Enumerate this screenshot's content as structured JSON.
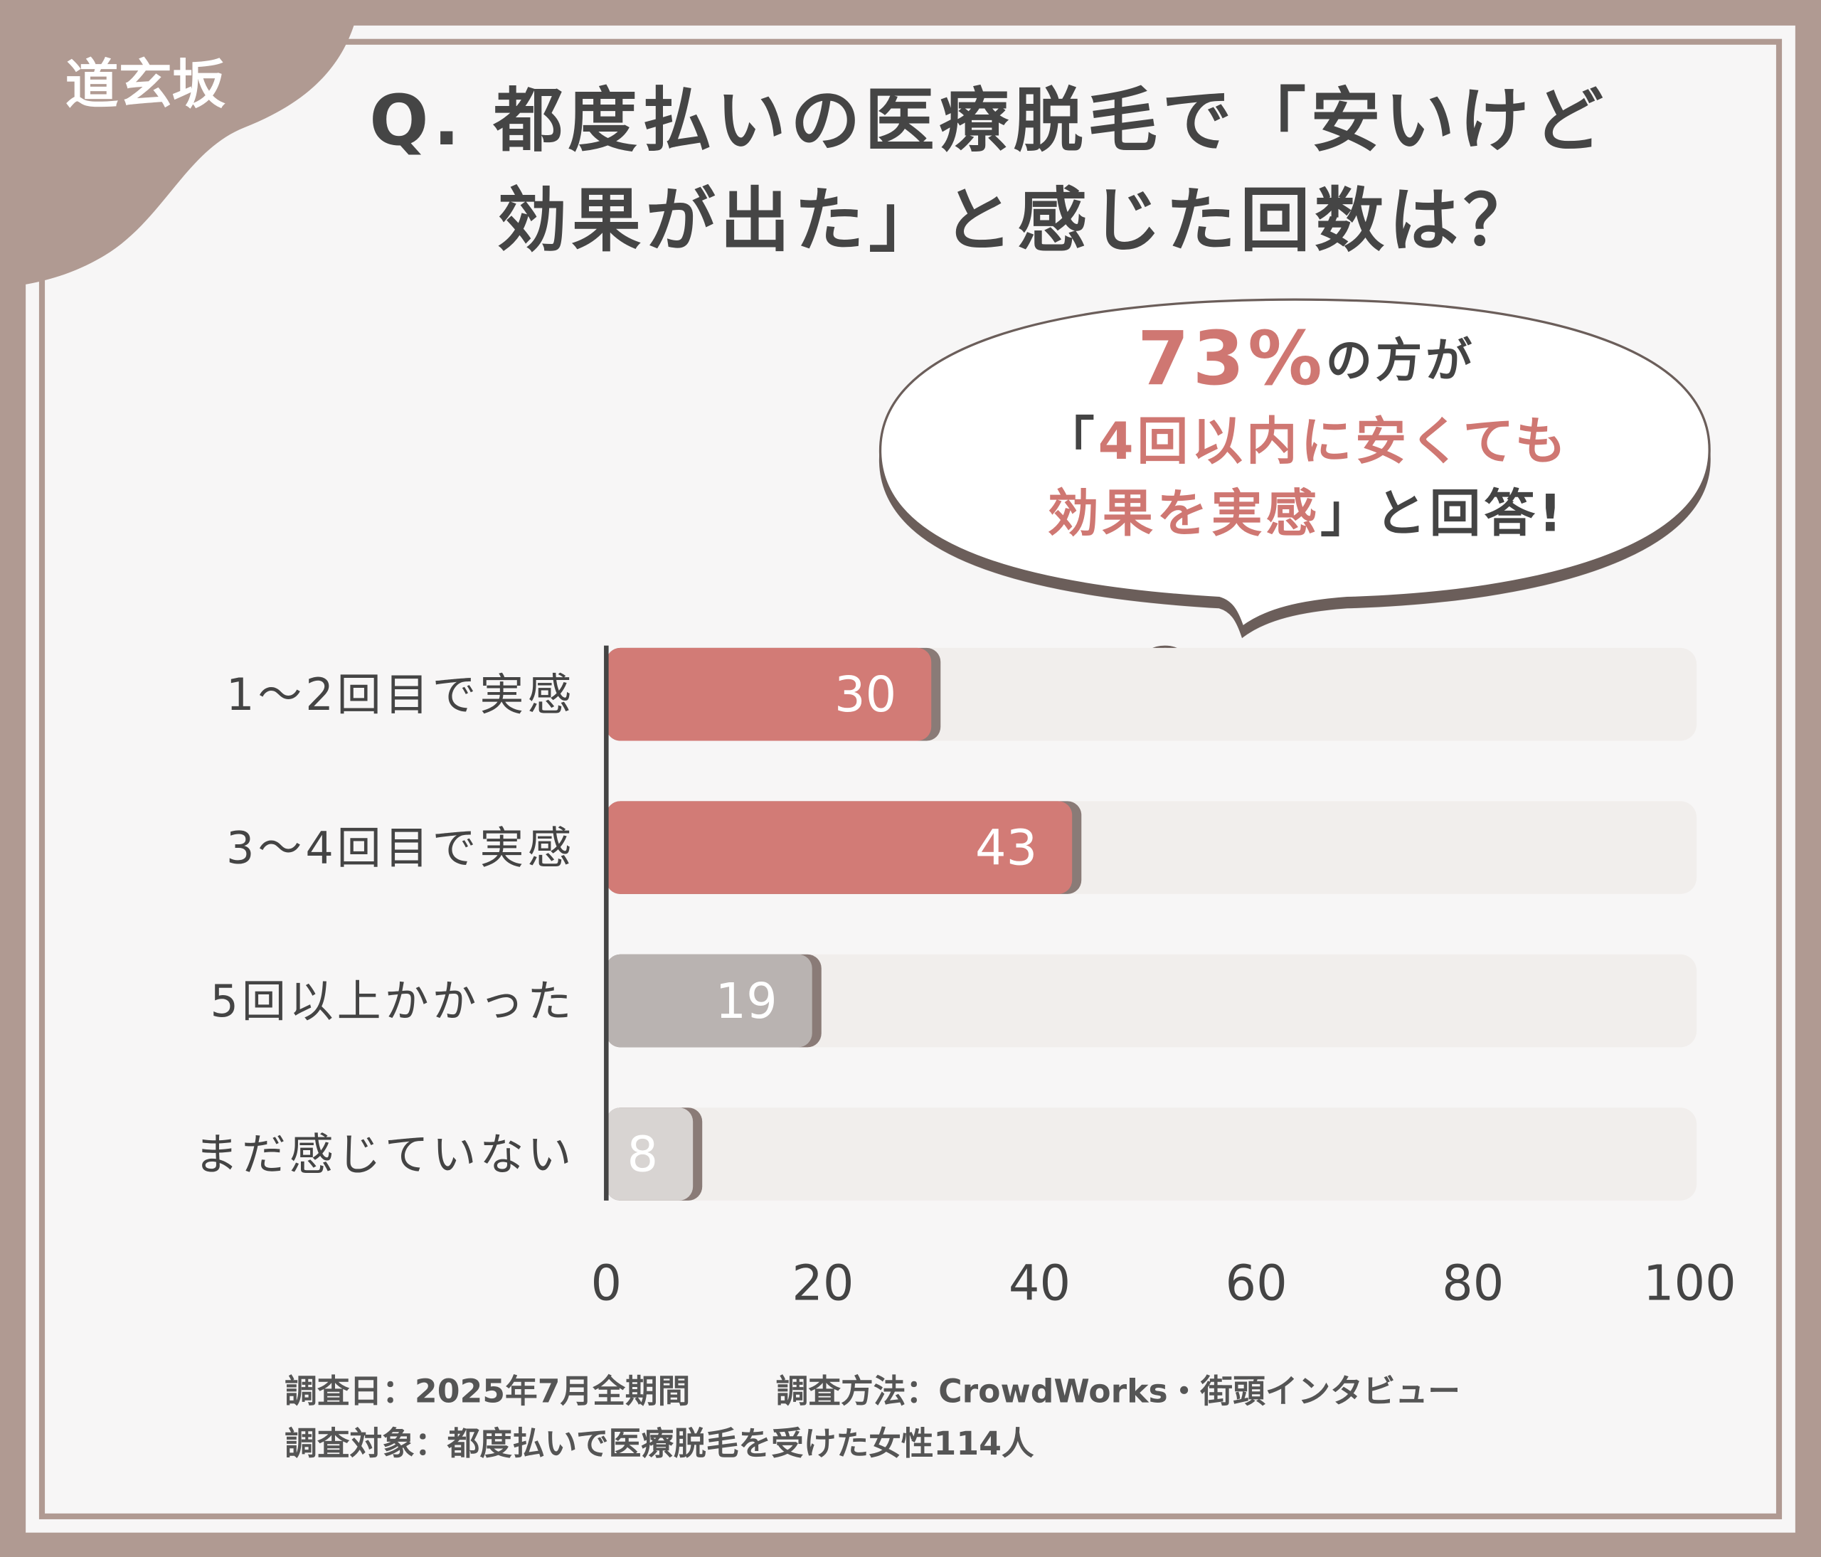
{
  "brand": "道玄坂",
  "chart_data": {
    "type": "hbar",
    "title": [
      "Q. 都度払いの医療脱毛で「安いけど",
      "効果が出た」と感じた回数は？"
    ],
    "callout": [
      [
        {
          "text": "73%",
          "color": "#cf7772",
          "size": 64
        },
        {
          "text": "の方が",
          "color": "#444444",
          "size": 40
        }
      ],
      [
        {
          "text": "「",
          "color": "#444444",
          "size": 44
        },
        {
          "text": "4回以内に安くても",
          "color": "#cf7772",
          "size": 44
        }
      ],
      [
        {
          "text": "効果を実感",
          "color": "#cf7772",
          "size": 44
        },
        {
          "text": "」と回答!",
          "color": "#444444",
          "size": 44
        }
      ]
    ],
    "categories": [
      "1～2回目で実感",
      "3～4回目で実感",
      "5回以上かかった",
      "まだ感じていない"
    ],
    "values": [
      30,
      43,
      19,
      8
    ],
    "colors": [
      "#d27b76",
      "#d27b76",
      "#b9b3b1",
      "#d8d4d2"
    ],
    "xlim": [
      0,
      100
    ],
    "xticks": [
      0,
      20,
      40,
      60,
      80,
      100
    ],
    "notes": [
      [
        "調査日：2025年7月全期間",
        "調査方法：CrowdWorks・街頭インタビュー"
      ],
      [
        "調査対象：都度払いで医療脱毛を受けた女性114人"
      ]
    ]
  }
}
